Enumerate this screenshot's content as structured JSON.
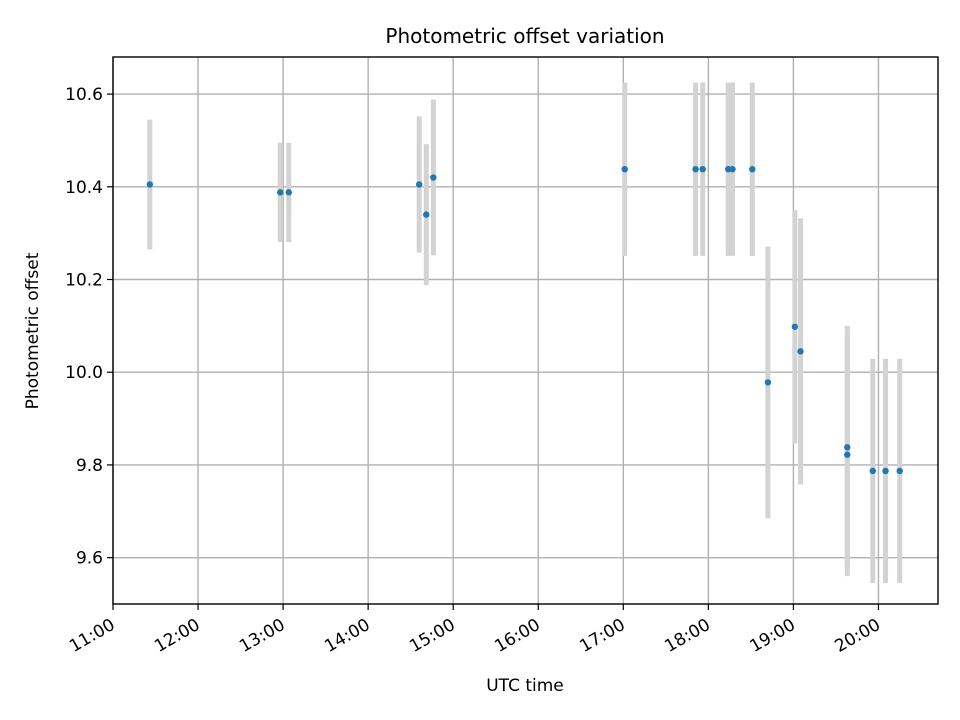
{
  "chart_data": {
    "type": "scatter",
    "title": "Photometric offset variation",
    "xlabel": "UTC time",
    "ylabel": "Photometric offset",
    "x_tick_labels": [
      "11:00",
      "12:00",
      "13:00",
      "14:00",
      "15:00",
      "16:00",
      "17:00",
      "18:00",
      "19:00",
      "20:00"
    ],
    "y_tick_labels": [
      "9.6",
      "9.8",
      "10.0",
      "10.2",
      "10.4",
      "10.6"
    ],
    "xlim": [
      "11:00",
      "20:42"
    ],
    "ylim": [
      9.5,
      10.68
    ],
    "grid": true,
    "colors": {
      "points": "#1f77b4",
      "error_bars": "#d3d3d3",
      "grid": "#b0b0b0"
    },
    "points": [
      {
        "x": "11:26",
        "y": 10.405,
        "err": 0.14
      },
      {
        "x": "12:58",
        "y": 10.388,
        "err": 0.107
      },
      {
        "x": "13:04",
        "y": 10.388,
        "err": 0.107
      },
      {
        "x": "14:36",
        "y": 10.405,
        "err": 0.147
      },
      {
        "x": "14:41",
        "y": 10.34,
        "err": 0.152
      },
      {
        "x": "14:46",
        "y": 10.42,
        "err": 0.168
      },
      {
        "x": "17:01",
        "y": 10.438,
        "err": 0.187
      },
      {
        "x": "17:51",
        "y": 10.438,
        "err": 0.187
      },
      {
        "x": "17:56",
        "y": 10.438,
        "err": 0.187
      },
      {
        "x": "18:14",
        "y": 10.438,
        "err": 0.187
      },
      {
        "x": "18:17",
        "y": 10.438,
        "err": 0.187
      },
      {
        "x": "18:31",
        "y": 10.438,
        "err": 0.187
      },
      {
        "x": "18:42",
        "y": 9.978,
        "err": 0.293
      },
      {
        "x": "19:01",
        "y": 10.098,
        "err": 0.252
      },
      {
        "x": "19:05",
        "y": 10.045,
        "err": 0.287
      },
      {
        "x": "19:38",
        "y": 9.838,
        "err": 0.262
      },
      {
        "x": "19:38",
        "y": 9.822,
        "err": 0.262
      },
      {
        "x": "19:56",
        "y": 9.787,
        "err": 0.242
      },
      {
        "x": "20:05",
        "y": 9.787,
        "err": 0.242
      },
      {
        "x": "20:15",
        "y": 9.787,
        "err": 0.242
      }
    ]
  }
}
